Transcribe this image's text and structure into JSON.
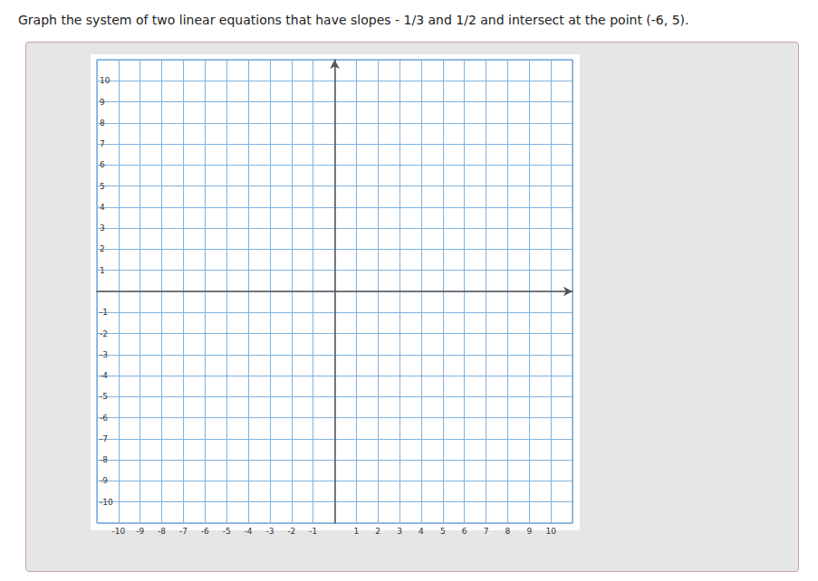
{
  "chart_data": {
    "type": "scatter",
    "title": "Graph the system of two linear equations that have slopes - 1/3 and 1/2 and intersect at the point (-6, 5).",
    "xlim": [
      -11,
      11
    ],
    "ylim": [
      -11,
      11
    ],
    "xticks": [
      -10,
      -9,
      -8,
      -7,
      -6,
      -5,
      -4,
      -3,
      -2,
      -1,
      1,
      2,
      3,
      4,
      5,
      6,
      7,
      8,
      9,
      10
    ],
    "yticks": [
      -10,
      -9,
      -8,
      -7,
      -6,
      -5,
      -4,
      -3,
      -2,
      -1,
      1,
      2,
      3,
      4,
      5,
      6,
      7,
      8,
      9,
      10
    ],
    "grid": true
  }
}
